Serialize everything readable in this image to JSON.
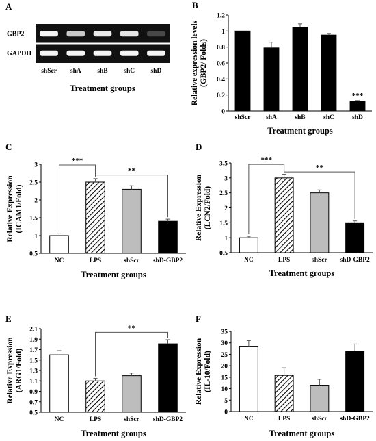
{
  "chart_data": [
    {
      "panel": "A",
      "type": "gel",
      "lanes": [
        "shScr",
        "shA",
        "shB",
        "shC",
        "shD"
      ],
      "rows": [
        {
          "name": "GBP2",
          "intensity": [
            0.95,
            0.75,
            0.9,
            0.88,
            0.15
          ]
        },
        {
          "name": "GAPDH",
          "intensity": [
            0.95,
            0.95,
            0.95,
            0.95,
            0.95
          ]
        }
      ],
      "xlabel": "Treatment groups"
    },
    {
      "panel": "B",
      "type": "bar",
      "categories": [
        "shScr",
        "shA",
        "shB",
        "shC",
        "shD"
      ],
      "values": [
        1.0,
        0.79,
        1.05,
        0.95,
        0.12
      ],
      "errors": [
        0,
        0.07,
        0.04,
        0.02,
        0.01
      ],
      "fills": [
        "solid",
        "solid",
        "solid",
        "solid",
        "solid"
      ],
      "ylim": [
        0,
        1.2
      ],
      "yticks": [
        "0",
        "0.2",
        "0.4",
        "0.6",
        "0.8",
        "1",
        "1.2"
      ],
      "xlabel": "Treatment groups",
      "ylabel": "Relative expression levels",
      "ylabel2": "(GBP2/ Folds)",
      "annotations": [
        {
          "bar": 4,
          "text": "***"
        }
      ],
      "brackets": []
    },
    {
      "panel": "C",
      "type": "bar",
      "categories": [
        "NC",
        "LPS",
        "shScr",
        "shD-GBP2"
      ],
      "values": [
        1.0,
        2.5,
        2.3,
        1.4
      ],
      "errors": [
        0.05,
        0.1,
        0.1,
        0.06
      ],
      "fills": [
        "white",
        "hatch",
        "gray",
        "black"
      ],
      "ylim": [
        0.5,
        3
      ],
      "yticks": [
        "0.5",
        "1",
        "1.5",
        "2",
        "2.5",
        "3"
      ],
      "xlabel": "Treatment groups",
      "ylabel": "Relative Expression",
      "ylabel2": "(ICAM1/Fold)",
      "annotations": [],
      "brackets": [
        {
          "from": 0,
          "to": 1,
          "level": 2.98,
          "text": "***"
        },
        {
          "from": 1,
          "to": 3,
          "level": 2.7,
          "text": "**"
        }
      ]
    },
    {
      "panel": "D",
      "type": "bar",
      "categories": [
        "NC",
        "LPS",
        "shScr",
        "shD-GBP2"
      ],
      "values": [
        1.0,
        3.0,
        2.5,
        1.5
      ],
      "errors": [
        0.05,
        0.12,
        0.1,
        0.06
      ],
      "fills": [
        "white",
        "hatch",
        "gray",
        "black"
      ],
      "ylim": [
        0.5,
        3.5
      ],
      "yticks": [
        "0.5",
        "1",
        "1.5",
        "2",
        "2.5",
        "3",
        "3.5"
      ],
      "xlabel": "Treatment groups",
      "ylabel": "Relative Expression",
      "ylabel2": "(LCN2/Fold)",
      "annotations": [],
      "brackets": [
        {
          "from": 0,
          "to": 1,
          "level": 3.45,
          "text": "***"
        },
        {
          "from": 1,
          "to": 3,
          "level": 3.2,
          "text": "**"
        }
      ]
    },
    {
      "panel": "E",
      "type": "bar",
      "categories": [
        "NC",
        "LPS",
        "shScr",
        "shD-GBP2"
      ],
      "values": [
        1.6,
        1.1,
        1.2,
        1.81
      ],
      "errors": [
        0.08,
        0.05,
        0.05,
        0.08
      ],
      "fills": [
        "white",
        "hatch",
        "gray",
        "black"
      ],
      "ylim": [
        0.5,
        2.1
      ],
      "yticks": [
        "0.5",
        "0.7",
        "0.9",
        "1.1",
        "1.3",
        "1.5",
        "1.7",
        "1.9",
        "2.1"
      ],
      "xlabel": "Treatment groups",
      "ylabel": "Relative Expression",
      "ylabel2": "(ARG1/Fold)",
      "annotations": [],
      "brackets": [
        {
          "from": 1,
          "to": 3,
          "level": 2.03,
          "text": "**"
        }
      ]
    },
    {
      "panel": "F",
      "type": "bar",
      "categories": [
        "NC",
        "LPS",
        "shScr",
        "shD-GBP2"
      ],
      "values": [
        28.3,
        15.8,
        11.5,
        26.3
      ],
      "errors": [
        2.7,
        3.3,
        2.6,
        3.2
      ],
      "fills": [
        "white",
        "hatch",
        "gray",
        "black"
      ],
      "ylim": [
        0,
        35
      ],
      "yticks": [
        "0",
        "5",
        "10",
        "15",
        "20",
        "25",
        "30",
        "35"
      ],
      "xlabel": "Treatment groups",
      "ylabel": "Relative Expression",
      "ylabel2": "(IL-10/Fold)",
      "annotations": [],
      "brackets": []
    }
  ]
}
